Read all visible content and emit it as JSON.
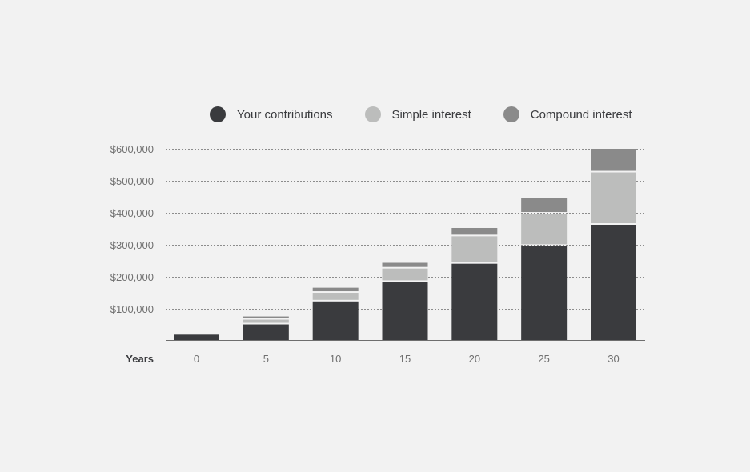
{
  "chart_data": {
    "type": "bar",
    "stacked": true,
    "categories": [
      "0",
      "5",
      "10",
      "15",
      "20",
      "25",
      "30"
    ],
    "xlabel": "Years",
    "ylabel": "",
    "ylim": [
      0,
      600000
    ],
    "yticks": [
      100000,
      200000,
      300000,
      400000,
      500000,
      600000
    ],
    "ytick_labels": [
      "$100,000",
      "$200,000",
      "$300,000",
      "$400,000",
      "$500,000",
      "$600,000"
    ],
    "grid": true,
    "legend_position": "top",
    "series": [
      {
        "name": "Your contributions",
        "color": "#3a3b3e",
        "values": [
          18000,
          50000,
          122000,
          183000,
          240000,
          296000,
          362000
        ]
      },
      {
        "name": "Simple interest",
        "color": "#bcbdbc",
        "values": [
          0,
          15000,
          27000,
          42000,
          86000,
          101000,
          164000
        ]
      },
      {
        "name": "Compound interest",
        "color": "#8a8a8a",
        "values": [
          0,
          10000,
          16000,
          18000,
          26000,
          50000,
          74000
        ]
      }
    ]
  }
}
